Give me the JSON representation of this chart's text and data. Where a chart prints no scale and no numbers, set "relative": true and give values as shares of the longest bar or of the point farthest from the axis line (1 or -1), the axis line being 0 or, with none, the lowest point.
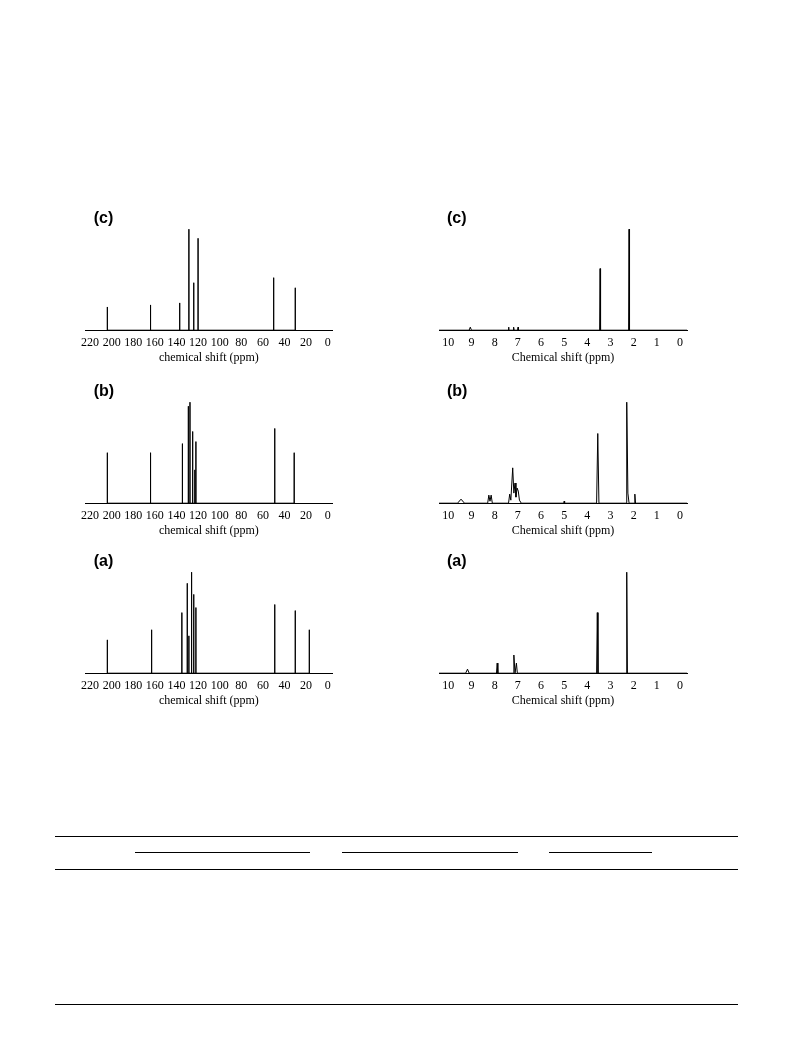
{
  "chart_data": [
    {
      "type": "line",
      "title": "(c)",
      "xlabel": "chemical shift (ppm)",
      "relative": true,
      "xlim": [
        224,
        -4
      ],
      "xticks": [
        220,
        200,
        180,
        160,
        140,
        120,
        100,
        80,
        60,
        40,
        20,
        0
      ],
      "color": "#000000",
      "x": [
        204,
        204,
        204,
        164,
        164,
        164,
        137,
        137,
        137,
        128.5,
        128.5,
        128.5,
        124,
        124,
        124,
        120,
        120,
        120,
        50,
        50,
        50,
        30,
        30,
        30
      ],
      "values": [
        0,
        0.23,
        0,
        0,
        0.25,
        0,
        0,
        0.27,
        0,
        0,
        1,
        0,
        0,
        0.47,
        0,
        0,
        0.91,
        0,
        0,
        0.52,
        0,
        0,
        0.42,
        0
      ]
    },
    {
      "type": "line",
      "title": "(c)",
      "xlabel": "Chemical shift (ppm)",
      "relative": true,
      "xlim": [
        10.4,
        -0.3
      ],
      "xticks": [
        10,
        9,
        8,
        7,
        6,
        5,
        4,
        3,
        2,
        1,
        0
      ],
      "color": "#000000",
      "x": [
        10.4,
        9.1,
        9.05,
        9,
        7.42,
        7.4,
        7.38,
        7.2,
        7.18,
        7.16,
        7.01,
        6.99,
        6.97,
        3.47,
        3.45,
        3.43,
        2.22,
        2.2,
        2.18,
        -0.3
      ],
      "values": [
        0,
        0,
        0.03,
        0,
        0,
        0.03,
        0,
        0,
        0.03,
        0,
        0,
        0.03,
        0,
        0,
        0.61,
        0,
        0,
        1,
        0,
        0
      ]
    },
    {
      "type": "line",
      "title": "(b)",
      "xlabel": "chemical shift (ppm)",
      "relative": true,
      "xlim": [
        224,
        -4
      ],
      "xticks": [
        220,
        200,
        180,
        160,
        140,
        120,
        100,
        80,
        60,
        40,
        20,
        0
      ],
      "color": "#000000",
      "x": [
        204,
        204,
        204,
        164,
        164,
        164,
        134.5,
        134.5,
        134.5,
        129,
        129,
        129,
        127.5,
        127.5,
        127.5,
        125,
        125,
        125,
        123,
        123,
        123,
        122,
        122,
        122,
        49,
        49,
        49,
        31,
        31,
        31
      ],
      "values": [
        0,
        0.5,
        0,
        0,
        0.5,
        0,
        0,
        0.59,
        0,
        0,
        0.96,
        0,
        0,
        1,
        0,
        0,
        0.71,
        0,
        0,
        0.33,
        0,
        0,
        0.61,
        0,
        0,
        0.74,
        0,
        0,
        0.5,
        0
      ]
    },
    {
      "type": "line",
      "title": "(b)",
      "xlabel": "Chemical shift (ppm)",
      "relative": true,
      "xlim": [
        10.4,
        -0.3
      ],
      "xticks": [
        10,
        9,
        8,
        7,
        6,
        5,
        4,
        3,
        2,
        1,
        0
      ],
      "color": "#000000",
      "x": [
        10.4,
        9.6,
        9.45,
        9.3,
        8.3,
        8.25,
        8.2,
        8.15,
        8.1,
        7.4,
        7.35,
        7.3,
        7.22,
        7.17,
        7.12,
        7.08,
        7.03,
        6.98,
        6.93,
        6.85,
        5.02,
        5,
        4.98,
        3.6,
        3.55,
        3.5,
        2.33,
        2.3,
        2.25,
        2.2,
        1.97,
        1.95,
        1.92,
        -0.3
      ],
      "values": [
        0,
        0,
        0.04,
        0,
        0,
        0.08,
        0.02,
        0.08,
        0,
        0,
        0.09,
        0.03,
        0.35,
        0.1,
        0.2,
        0.06,
        0.15,
        0.12,
        0.03,
        0,
        0,
        0.02,
        0,
        0,
        0.69,
        0,
        0,
        1,
        0.1,
        0,
        0,
        0.09,
        0,
        0
      ]
    },
    {
      "type": "line",
      "title": "(a)",
      "xlabel": "chemical shift (ppm)",
      "relative": true,
      "xlim": [
        224,
        -4
      ],
      "xticks": [
        220,
        200,
        180,
        160,
        140,
        120,
        100,
        80,
        60,
        40,
        20,
        0
      ],
      "color": "#000000",
      "x": [
        204,
        204,
        204,
        163,
        163,
        163,
        135,
        135,
        135,
        130,
        130,
        130,
        128.5,
        128.5,
        128.5,
        126,
        126,
        126,
        124,
        124,
        124,
        122,
        122,
        122,
        49,
        49,
        49,
        30,
        30,
        30,
        17,
        17,
        17
      ],
      "values": [
        0,
        0.33,
        0,
        0,
        0.43,
        0,
        0,
        0.6,
        0,
        0,
        0.89,
        0,
        0,
        0.37,
        0,
        0,
        1,
        0,
        0,
        0.78,
        0,
        0,
        0.65,
        0,
        0,
        0.68,
        0,
        0,
        0.62,
        0,
        0,
        0.43,
        0
      ]
    },
    {
      "type": "line",
      "title": "(a)",
      "xlabel": "Chemical shift (ppm)",
      "relative": true,
      "xlim": [
        10.4,
        -0.3
      ],
      "xticks": [
        10,
        9,
        8,
        7,
        6,
        5,
        4,
        3,
        2,
        1,
        0
      ],
      "color": "#000000",
      "x": [
        10.4,
        9.25,
        9.17,
        9.1,
        7.92,
        7.89,
        7.86,
        7.2,
        7.17,
        7.12,
        7.06,
        7.02,
        3.6,
        3.57,
        3.54,
        2.33,
        2.3,
        2.27,
        -0.3
      ],
      "values": [
        0,
        0,
        0.04,
        0,
        0,
        0.1,
        0,
        0,
        0.18,
        0,
        0.1,
        0,
        0,
        0.6,
        0,
        0,
        1,
        0,
        0
      ]
    }
  ]
}
